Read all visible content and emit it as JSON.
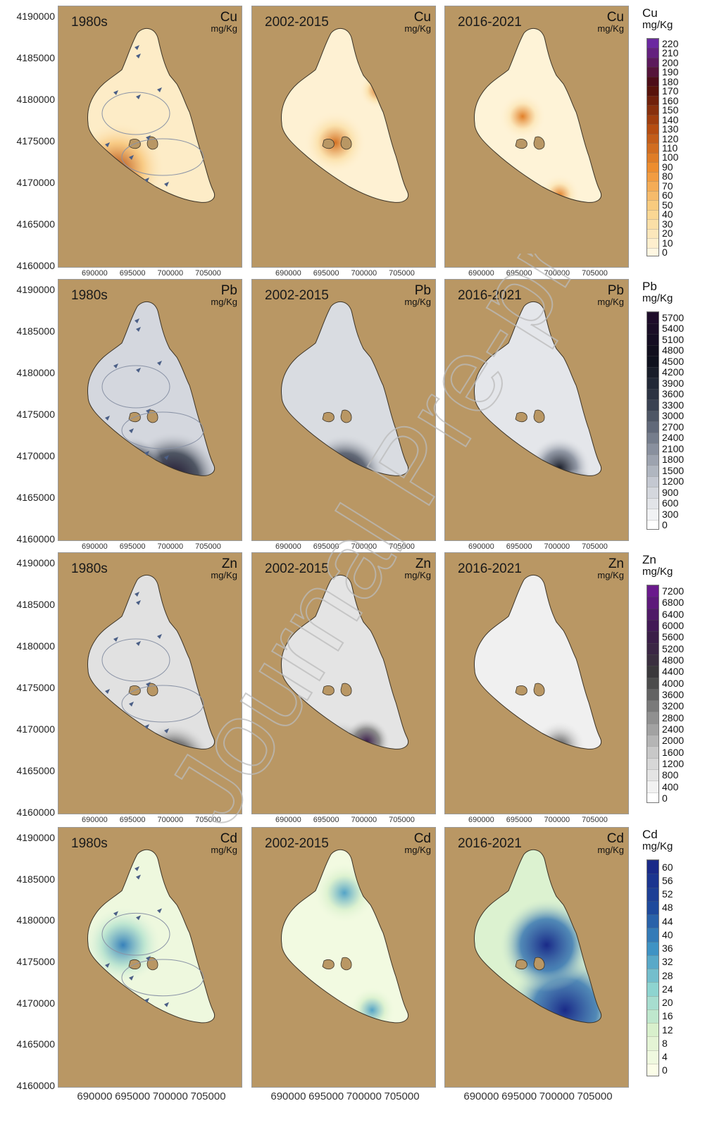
{
  "periods": [
    "1980s",
    "2002-2015",
    "2016-2021"
  ],
  "unit": "mg/Kg",
  "y_ticks": [
    "4190000",
    "4185000",
    "4180000",
    "4175000",
    "4170000",
    "4165000",
    "4160000"
  ],
  "x_ticks": [
    "690000",
    "695000",
    "700000",
    "705000"
  ],
  "watermark": "Journal Pre-proof",
  "colors": {
    "land": "#b99764",
    "panel_border": "#9a9a9a",
    "flow_arrow": "#4b5f86"
  },
  "metals": [
    {
      "symbol": "Cu",
      "legend": [
        "220",
        "210",
        "200",
        "190",
        "180",
        "170",
        "160",
        "150",
        "140",
        "130",
        "120",
        "110",
        "100",
        "90",
        "80",
        "70",
        "60",
        "50",
        "40",
        "30",
        "20",
        "10",
        "0"
      ],
      "ramp": [
        "#fff7e2",
        "#f9d48c",
        "#f09030",
        "#b24a10",
        "#4a0a0a",
        "#6b28a0"
      ],
      "levels_by_period": [
        0.25,
        0.14,
        0.1
      ]
    },
    {
      "symbol": "Pb",
      "legend": [
        "5700",
        "5400",
        "5100",
        "4800",
        "4500",
        "4200",
        "3900",
        "3600",
        "3300",
        "3000",
        "2700",
        "2400",
        "2100",
        "1800",
        "1500",
        "1200",
        "900",
        "600",
        "300",
        "0"
      ],
      "ramp": [
        "#ffffff",
        "#c8ccd4",
        "#7d8594",
        "#323a4a",
        "#0d0f1a",
        "#1e0d2a"
      ],
      "levels_by_period": [
        0.62,
        0.55,
        0.4
      ]
    },
    {
      "symbol": "Zn",
      "legend": [
        "7200",
        "6800",
        "6400",
        "6000",
        "5600",
        "5200",
        "4800",
        "4400",
        "4000",
        "3600",
        "3200",
        "2800",
        "2400",
        "2000",
        "1600",
        "1200",
        "800",
        "400",
        "0"
      ],
      "ramp": [
        "#ffffff",
        "#cfcfcf",
        "#8c8c8c",
        "#3a3a3a",
        "#3a1a4a",
        "#6a1a8c"
      ],
      "levels_by_period": [
        0.5,
        0.45,
        0.25
      ]
    },
    {
      "symbol": "Cd",
      "legend": [
        "60",
        "56",
        "52",
        "48",
        "44",
        "40",
        "36",
        "32",
        "28",
        "24",
        "20",
        "16",
        "12",
        "8",
        "4",
        "0"
      ],
      "ramp": [
        "#fbfde8",
        "#d8f0cc",
        "#8ed4d0",
        "#3f93c4",
        "#1e4a9c",
        "#1a2a88"
      ],
      "levels_by_period": [
        0.3,
        0.2,
        0.7
      ]
    }
  ]
}
